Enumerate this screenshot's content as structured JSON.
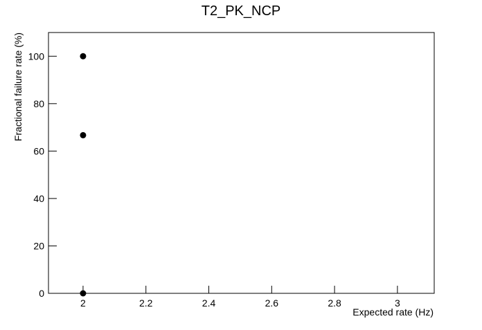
{
  "chart_data": {
    "type": "scatter",
    "title": "T2_PK_NCP",
    "x_label": "Expected rate (Hz)",
    "y_label": "Fractional failure rate (%)",
    "series": [
      {
        "color": "#000000",
        "x": [
          2,
          2,
          2
        ],
        "values": [
          100,
          66.7,
          0
        ]
      }
    ],
    "xlim": [
      1.89,
      3.117
    ],
    "xticks": [
      2,
      2.2,
      2.4,
      2.6,
      2.8,
      3
    ],
    "ylim": [
      0,
      110
    ],
    "yticks": [
      0,
      20,
      40,
      60,
      80,
      100
    ]
  }
}
